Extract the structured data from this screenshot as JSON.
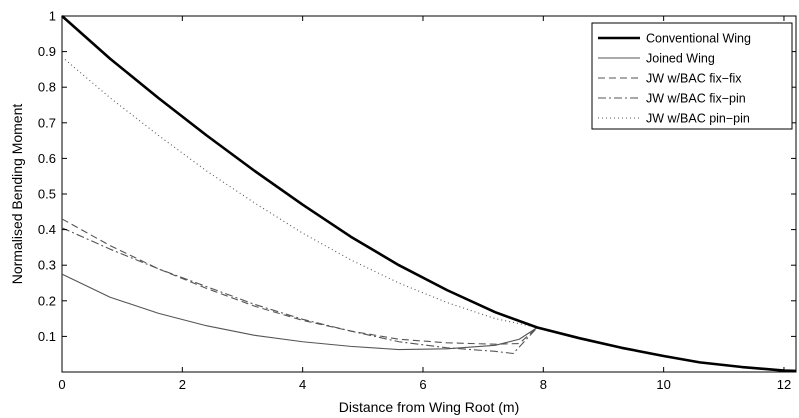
{
  "chart_data": {
    "type": "line",
    "title": "",
    "xlabel": "Distance from Wing Root (m)",
    "ylabel": "Normalised Bending Moment",
    "xlim": [
      0,
      12.2
    ],
    "ylim": [
      0,
      1
    ],
    "xticks": [
      0,
      2,
      4,
      6,
      8,
      10,
      12
    ],
    "xtick_labels": [
      "0",
      "2",
      "4",
      "6",
      "8",
      "10",
      "12"
    ],
    "yticks": [
      0.1,
      0.2,
      0.3,
      0.4,
      0.5,
      0.6,
      0.7,
      0.8,
      0.9,
      1
    ],
    "ytick_labels": [
      "0.1",
      "0.2",
      "0.3",
      "0.4",
      "0.5",
      "0.6",
      "0.7",
      "0.8",
      "0.9",
      "1"
    ],
    "grid": false,
    "legend_position": "top-right",
    "series": [
      {
        "name": "Conventional Wing",
        "color": "#000000",
        "line_style": "solid-thick",
        "x": [
          0,
          0.8,
          1.6,
          2.4,
          3.2,
          4.0,
          4.8,
          5.6,
          6.4,
          7.2,
          7.9,
          8.6,
          9.3,
          10.0,
          10.6,
          11.3,
          12.0,
          12.2
        ],
        "y": [
          1.0,
          0.88,
          0.77,
          0.665,
          0.565,
          0.47,
          0.38,
          0.3,
          0.23,
          0.168,
          0.125,
          0.095,
          0.068,
          0.045,
          0.027,
          0.014,
          0.004,
          0.003
        ]
      },
      {
        "name": "Joined Wing",
        "color": "#555555",
        "line_style": "solid",
        "x": [
          0,
          0.8,
          1.6,
          2.4,
          3.2,
          4.0,
          4.8,
          5.6,
          6.4,
          7.2,
          7.6,
          7.9,
          8.6,
          9.3,
          10.0,
          10.6,
          11.3,
          12.0,
          12.2
        ],
        "y": [
          0.275,
          0.21,
          0.165,
          0.13,
          0.103,
          0.085,
          0.072,
          0.063,
          0.065,
          0.075,
          0.092,
          0.125,
          0.095,
          0.068,
          0.045,
          0.027,
          0.014,
          0.004,
          0.003
        ]
      },
      {
        "name": "JW w/BAC fix−fix",
        "color": "#555555",
        "line_style": "dashed",
        "x": [
          0,
          0.8,
          1.6,
          2.4,
          3.2,
          4.0,
          4.8,
          5.6,
          6.4,
          7.2,
          7.6,
          7.9,
          8.6,
          9.3,
          10.0,
          10.6,
          11.3,
          12.0,
          12.2
        ],
        "y": [
          0.43,
          0.355,
          0.29,
          0.235,
          0.185,
          0.145,
          0.115,
          0.092,
          0.082,
          0.078,
          0.08,
          0.125,
          0.095,
          0.068,
          0.045,
          0.027,
          0.014,
          0.004,
          0.003
        ]
      },
      {
        "name": "JW w/BAC fix−pin",
        "color": "#555555",
        "line_style": "dashdot",
        "x": [
          0,
          0.8,
          1.6,
          2.4,
          3.2,
          4.0,
          4.8,
          5.6,
          6.4,
          7.2,
          7.5,
          7.9,
          8.6,
          9.3,
          10.0,
          10.6,
          11.3,
          12.0,
          12.2
        ],
        "y": [
          0.405,
          0.345,
          0.29,
          0.24,
          0.19,
          0.148,
          0.115,
          0.085,
          0.068,
          0.058,
          0.052,
          0.125,
          0.095,
          0.068,
          0.045,
          0.027,
          0.014,
          0.004,
          0.003
        ]
      },
      {
        "name": "JW w/BAC pin−pin",
        "color": "#555555",
        "line_style": "dotted",
        "x": [
          0,
          0.8,
          1.6,
          2.4,
          3.2,
          4.0,
          4.8,
          5.6,
          6.4,
          7.2,
          7.9,
          8.6,
          9.3,
          10.0,
          10.6,
          11.3,
          12.0,
          12.2
        ],
        "y": [
          0.885,
          0.77,
          0.665,
          0.565,
          0.475,
          0.39,
          0.315,
          0.25,
          0.195,
          0.15,
          0.125,
          0.095,
          0.068,
          0.045,
          0.027,
          0.014,
          0.004,
          0.003
        ]
      }
    ]
  }
}
